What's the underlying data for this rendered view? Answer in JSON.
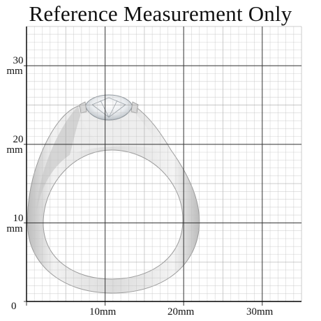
{
  "title": "Reference Measurement Only",
  "y_labels": [
    {
      "number": "30",
      "unit": "mm"
    },
    {
      "number": "20",
      "unit": "mm"
    },
    {
      "number": "10",
      "unit": "mm"
    },
    {
      "number": "0",
      "unit": ""
    }
  ],
  "x_labels": [
    "10mm",
    "20mm",
    "30mm"
  ],
  "colors": {
    "minor_grid": "#bfbfbf",
    "major_grid": "#333333",
    "ring_metal": "#e6e6e6",
    "ring_shadow": "#cfcfcf",
    "stone": "#f4f6f8"
  }
}
